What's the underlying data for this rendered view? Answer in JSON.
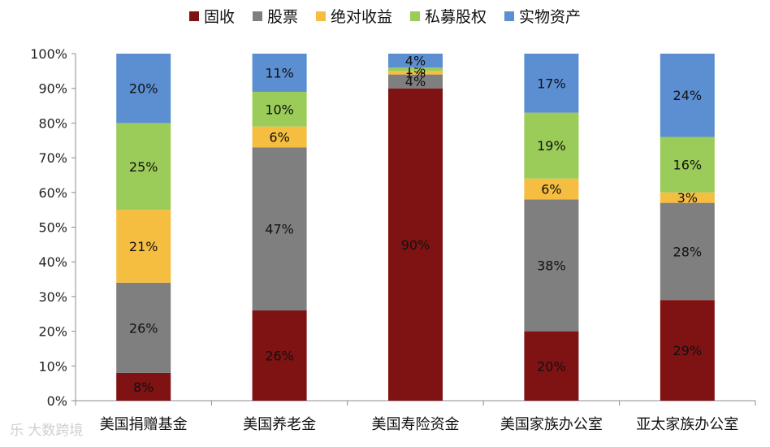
{
  "chart_data": {
    "type": "bar",
    "stacked": true,
    "categories": [
      "美国捐赠基金",
      "美国养老金",
      "美国寿险资金",
      "美国家族办公室",
      "亚太家族办公室"
    ],
    "series": [
      {
        "name": "固收",
        "color": "#7F1212",
        "values": [
          8,
          26,
          90,
          20,
          29
        ],
        "labels": [
          "8%",
          "26%",
          "90%",
          "20%",
          "29%"
        ]
      },
      {
        "name": "股票",
        "color": "#7F7F7F",
        "values": [
          26,
          47,
          4,
          38,
          28
        ],
        "labels": [
          "26%",
          "47%",
          "4%",
          "38%",
          "28%"
        ]
      },
      {
        "name": "绝对收益",
        "color": "#F5BE41",
        "values": [
          21,
          6,
          1,
          6,
          3
        ],
        "labels": [
          "21%",
          "6%",
          "1%",
          "6%",
          "3%"
        ]
      },
      {
        "name": "私募股权",
        "color": "#9BCB59",
        "values": [
          25,
          10,
          1,
          19,
          16
        ],
        "labels": [
          "25%",
          "10%",
          "1%",
          "19%",
          "16%"
        ]
      },
      {
        "name": "实物资产",
        "color": "#5B8FD2",
        "values": [
          20,
          11,
          4,
          17,
          24
        ],
        "labels": [
          "20%",
          "11%",
          "4%",
          "17%",
          "24%"
        ]
      }
    ],
    "yticks": [
      "0%",
      "10%",
      "20%",
      "30%",
      "40%",
      "50%",
      "60%",
      "70%",
      "80%",
      "90%",
      "100%"
    ],
    "ylim": [
      0,
      100
    ],
    "legend_position": "top",
    "grid": false
  },
  "watermark": "乐 大数跨境"
}
